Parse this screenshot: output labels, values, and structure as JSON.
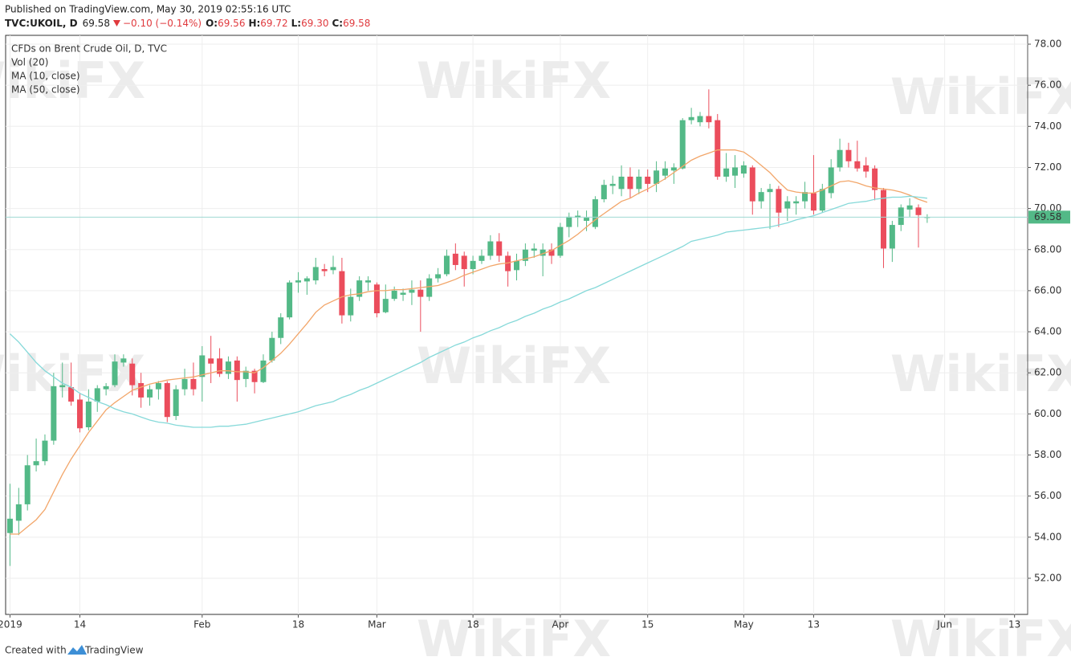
{
  "header": {
    "published": "Published on TradingView.com, May 30, 2019 02:55:16 UTC",
    "symbol": "TVC:UKOIL, D",
    "last": "69.58",
    "change": "−0.10 (−0.14%)",
    "ohlc": [
      {
        "label": "O:",
        "value": "69.56"
      },
      {
        "label": "H:",
        "value": "69.72"
      },
      {
        "label": "L:",
        "value": "69.30"
      },
      {
        "label": "C:",
        "value": "69.58"
      }
    ]
  },
  "footer": {
    "created_with": "Created with",
    "brand": "TradingView"
  },
  "watermark": "WikiFX",
  "chart_data": {
    "type": "candlestick",
    "title": "CFDs on Brent Crude Oil, D, TVC",
    "volume_label": "Vol (20)",
    "up_color": "#53b987",
    "down_color": "#eb4d5c",
    "grid": true,
    "ylim": [
      50.24,
      78.43
    ],
    "yticks": [
      {
        "value": 52,
        "label": "52.00"
      },
      {
        "value": 54,
        "label": "54.00"
      },
      {
        "value": 56,
        "label": "56.00"
      },
      {
        "value": 58,
        "label": "58.00"
      },
      {
        "value": 60,
        "label": "60.00"
      },
      {
        "value": 62,
        "label": "62.00"
      },
      {
        "value": 64,
        "label": "64.00"
      },
      {
        "value": 66,
        "label": "66.00"
      },
      {
        "value": 68,
        "label": "68.00"
      },
      {
        "value": 70,
        "label": "70.00"
      },
      {
        "value": 72,
        "label": "72.00"
      },
      {
        "value": 74,
        "label": "74.00"
      },
      {
        "value": 76,
        "label": "76.00"
      },
      {
        "value": 78,
        "label": "78.00"
      }
    ],
    "categories": [
      "2019",
      null,
      null,
      null,
      null,
      null,
      null,
      null,
      "14",
      null,
      null,
      null,
      null,
      null,
      null,
      null,
      null,
      null,
      null,
      null,
      null,
      null,
      "Feb",
      null,
      null,
      null,
      null,
      null,
      null,
      null,
      null,
      null,
      null,
      "18",
      null,
      null,
      null,
      null,
      null,
      null,
      null,
      null,
      "Mar",
      null,
      null,
      null,
      null,
      null,
      null,
      null,
      null,
      null,
      null,
      "18",
      null,
      null,
      null,
      null,
      null,
      null,
      null,
      null,
      null,
      "Apr",
      null,
      null,
      null,
      null,
      null,
      null,
      null,
      null,
      null,
      "15",
      null,
      null,
      null,
      null,
      null,
      null,
      null,
      null,
      null,
      null,
      "May",
      null,
      null,
      null,
      null,
      null,
      null,
      null,
      "13",
      null,
      null,
      null,
      null,
      null,
      null,
      null,
      null,
      null,
      null,
      null,
      null,
      null,
      null,
      "Jun",
      null,
      null,
      null,
      null,
      null,
      null,
      null,
      "13",
      null
    ],
    "open": [
      54.2,
      54.8,
      55.6,
      57.5,
      57.7,
      58.7,
      61.3,
      61.3,
      60.7,
      59.35,
      60.6,
      61.2,
      61.4,
      62.5,
      62.45,
      61.5,
      60.8,
      61.2,
      61.5,
      59.9,
      61.2,
      61.7,
      61.8,
      62.7,
      62.7,
      61.95,
      62.6,
      61.7,
      62.1,
      61.55,
      62.6,
      63.7,
      64.7,
      66.4,
      66.45,
      66.5,
      67.05,
      67.0,
      66.95,
      64.8,
      65.7,
      66.4,
      66.3,
      64.95,
      65.6,
      65.8,
      65.9,
      66.05,
      65.7,
      66.6,
      66.8,
      67.8,
      67.7,
      67.05,
      67.45,
      67.7,
      68.4,
      67.7,
      67.0,
      67.45,
      67.95,
      67.7,
      68.0,
      67.7,
      69.1,
      69.55,
      69.4,
      69.1,
      70.45,
      71.1,
      70.95,
      71.55,
      70.95,
      71.55,
      71.2,
      71.6,
      71.85,
      71.95,
      74.3,
      74.2,
      74.5,
      74.3,
      71.55,
      71.6,
      71.7,
      72.0,
      70.35,
      70.8,
      70.95,
      70.0,
      70.25,
      70.35,
      70.75,
      69.9,
      70.75,
      72.0,
      72.85,
      72.3,
      72.1,
      71.95,
      70.9,
      68.05,
      69.2,
      69.95,
      70.05,
      69.56,
      null,
      null,
      null,
      null,
      null,
      null,
      null,
      null,
      null,
      null,
      null
    ],
    "high": [
      56.6,
      56.4,
      58.0,
      58.8,
      59.0,
      62.0,
      62.5,
      62.5,
      61.0,
      61.2,
      61.4,
      61.5,
      62.9,
      62.9,
      62.7,
      62.0,
      61.4,
      61.6,
      61.6,
      61.4,
      62.2,
      62.5,
      63.3,
      63.8,
      63.2,
      62.8,
      62.8,
      62.3,
      62.2,
      62.9,
      64.0,
      64.9,
      66.5,
      66.9,
      66.7,
      67.6,
      67.3,
      67.7,
      67.6,
      66.1,
      66.7,
      66.7,
      66.4,
      66.3,
      66.2,
      66.1,
      66.5,
      66.5,
      66.8,
      67.1,
      68.0,
      68.3,
      67.9,
      67.7,
      68.0,
      68.7,
      68.8,
      67.9,
      67.8,
      68.3,
      68.3,
      68.3,
      68.3,
      69.3,
      69.8,
      69.9,
      69.9,
      70.6,
      71.4,
      71.6,
      72.1,
      72.0,
      71.9,
      71.9,
      72.3,
      72.3,
      72.2,
      74.4,
      74.9,
      74.7,
      75.8,
      74.6,
      72.7,
      72.6,
      72.3,
      72.1,
      71.0,
      71.2,
      71.1,
      70.6,
      70.6,
      71.3,
      72.6,
      71.2,
      72.4,
      73.4,
      73.2,
      73.3,
      72.5,
      72.1,
      71.0,
      69.4,
      70.2,
      70.5,
      70.2,
      69.72,
      null,
      null,
      null,
      null,
      null,
      null,
      null,
      null,
      null,
      null,
      null
    ],
    "low": [
      52.6,
      54.1,
      55.3,
      57.2,
      57.5,
      58.5,
      60.8,
      60.4,
      59.1,
      59.2,
      60.1,
      60.9,
      61.3,
      62.3,
      60.9,
      60.3,
      60.4,
      60.7,
      59.6,
      59.7,
      60.9,
      60.9,
      60.6,
      61.5,
      61.8,
      61.7,
      60.6,
      61.3,
      61.0,
      61.5,
      62.5,
      63.4,
      64.6,
      65.9,
      65.8,
      66.3,
      66.7,
      66.8,
      64.4,
      64.5,
      65.5,
      66.0,
      64.7,
      64.9,
      65.5,
      65.5,
      65.3,
      64.0,
      65.5,
      66.4,
      66.7,
      67.0,
      66.2,
      66.8,
      67.3,
      67.5,
      67.4,
      66.2,
      66.5,
      67.2,
      67.6,
      66.7,
      67.3,
      67.6,
      68.6,
      69.1,
      68.9,
      69.0,
      70.3,
      70.7,
      70.6,
      70.5,
      70.7,
      70.8,
      70.8,
      71.4,
      71.2,
      71.9,
      74.1,
      74.0,
      73.9,
      71.4,
      71.3,
      71.0,
      71.5,
      69.7,
      70.0,
      69.0,
      69.1,
      69.4,
      69.7,
      70.0,
      69.7,
      69.8,
      70.5,
      71.8,
      72.0,
      71.8,
      71.5,
      70.4,
      67.1,
      67.4,
      68.9,
      69.6,
      68.1,
      69.3,
      null,
      null,
      null,
      null,
      null,
      null,
      null,
      null,
      null,
      null,
      null
    ],
    "close": [
      54.9,
      55.6,
      57.5,
      57.7,
      58.7,
      61.35,
      61.4,
      60.6,
      59.3,
      60.6,
      61.25,
      61.35,
      62.55,
      62.7,
      61.4,
      60.8,
      61.2,
      61.5,
      59.85,
      61.2,
      61.7,
      61.2,
      62.85,
      62.45,
      61.95,
      62.55,
      61.65,
      62.1,
      61.55,
      62.6,
      63.7,
      64.7,
      66.4,
      66.5,
      66.6,
      67.15,
      66.95,
      67.15,
      64.8,
      65.7,
      66.5,
      66.5,
      64.9,
      65.6,
      66.0,
      65.9,
      66.05,
      65.7,
      66.6,
      66.8,
      67.7,
      67.25,
      67.05,
      67.45,
      67.7,
      68.4,
      67.7,
      66.95,
      67.45,
      68.0,
      68.05,
      68.0,
      67.7,
      69.1,
      69.6,
      69.65,
      69.55,
      70.45,
      71.15,
      71.2,
      71.55,
      70.95,
      71.55,
      71.2,
      71.85,
      71.95,
      72.0,
      74.3,
      74.45,
      74.5,
      74.2,
      71.55,
      71.95,
      72.0,
      72.1,
      70.35,
      70.8,
      70.95,
      69.8,
      70.35,
      70.35,
      70.8,
      69.9,
      70.95,
      72.0,
      72.85,
      72.3,
      71.95,
      71.8,
      70.9,
      68.05,
      69.2,
      70.05,
      70.15,
      69.68,
      69.58,
      null,
      null,
      null,
      null,
      null,
      null,
      null,
      null,
      null,
      null,
      null
    ],
    "lines": [
      {
        "name": "MA (10, close)",
        "color": "#f2a66a",
        "values": [
          54.15,
          54.15,
          54.5,
          54.85,
          55.35,
          56.2,
          57.05,
          57.8,
          58.45,
          59.1,
          59.65,
          60.2,
          60.55,
          60.85,
          61.15,
          61.3,
          61.45,
          61.55,
          61.65,
          61.7,
          61.75,
          61.8,
          61.9,
          62.0,
          62.1,
          62.1,
          62.05,
          62.05,
          62.0,
          62.25,
          62.6,
          62.95,
          63.4,
          63.9,
          64.4,
          64.95,
          65.3,
          65.5,
          65.7,
          65.8,
          65.85,
          65.95,
          66.0,
          66.0,
          66.05,
          66.05,
          66.1,
          66.15,
          66.2,
          66.25,
          66.4,
          66.55,
          66.75,
          66.9,
          67.05,
          67.2,
          67.3,
          67.35,
          67.45,
          67.55,
          67.65,
          67.8,
          67.95,
          68.2,
          68.45,
          68.75,
          69.1,
          69.45,
          69.75,
          70.05,
          70.35,
          70.5,
          70.75,
          70.95,
          71.2,
          71.45,
          71.75,
          72.05,
          72.35,
          72.55,
          72.7,
          72.85,
          72.85,
          72.85,
          72.75,
          72.45,
          72.1,
          71.75,
          71.3,
          70.9,
          70.8,
          70.75,
          70.75,
          70.9,
          71.1,
          71.3,
          71.35,
          71.25,
          71.1,
          71.0,
          70.95,
          70.9,
          70.8,
          70.65,
          70.45,
          70.3,
          null,
          null,
          null,
          null,
          null,
          null,
          null,
          null,
          null,
          null,
          null
        ]
      },
      {
        "name": "MA (50, close)",
        "color": "#86d9d9",
        "values": [
          63.9,
          63.5,
          63.0,
          62.5,
          62.1,
          61.8,
          61.5,
          61.3,
          61.0,
          60.8,
          60.6,
          60.45,
          60.25,
          60.1,
          60.0,
          59.85,
          59.7,
          59.6,
          59.55,
          59.45,
          59.4,
          59.35,
          59.35,
          59.35,
          59.4,
          59.4,
          59.45,
          59.5,
          59.6,
          59.7,
          59.8,
          59.9,
          60.0,
          60.1,
          60.25,
          60.4,
          60.5,
          60.6,
          60.8,
          60.95,
          61.15,
          61.3,
          61.5,
          61.7,
          61.9,
          62.1,
          62.3,
          62.5,
          62.75,
          62.95,
          63.15,
          63.35,
          63.5,
          63.7,
          63.85,
          64.05,
          64.2,
          64.4,
          64.55,
          64.75,
          64.9,
          65.1,
          65.25,
          65.45,
          65.6,
          65.8,
          66.0,
          66.15,
          66.35,
          66.55,
          66.75,
          66.95,
          67.15,
          67.35,
          67.55,
          67.75,
          67.95,
          68.15,
          68.4,
          68.5,
          68.6,
          68.7,
          68.85,
          68.9,
          68.95,
          69.0,
          69.05,
          69.1,
          69.2,
          69.3,
          69.45,
          69.55,
          69.65,
          69.8,
          69.95,
          70.1,
          70.25,
          70.3,
          70.35,
          70.45,
          70.5,
          70.55,
          70.55,
          70.6,
          70.55,
          70.5,
          null,
          null,
          null,
          null,
          null,
          null,
          null,
          null,
          null,
          null,
          null
        ]
      }
    ]
  }
}
